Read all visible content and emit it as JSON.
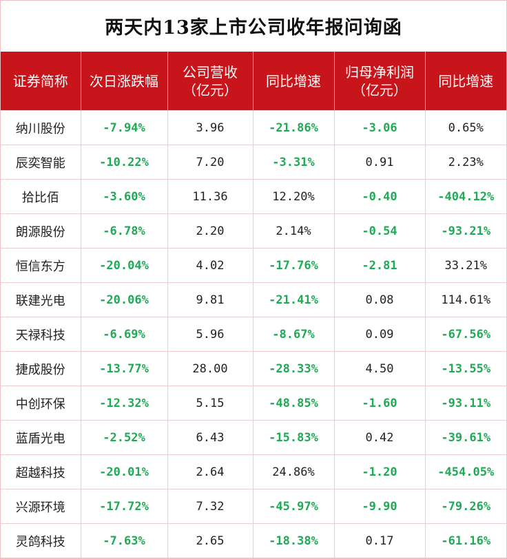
{
  "title": "两天内13家上市公司收年报问询函",
  "colors": {
    "header_bg": "#c8141b",
    "negative_text": "#1faa56",
    "grid": "#f1cccc"
  },
  "chart_data": {
    "type": "table",
    "title": "两天内13家上市公司收年报问询函",
    "columns": [
      "证券简称",
      "次日涨跌幅",
      "公司营收\n（亿元）",
      "同比增速",
      "归母净利润\n（亿元）",
      "同比增速"
    ],
    "rows": [
      [
        "纳川股份",
        "-7.94%",
        "3.96",
        "-21.86%",
        "-3.06",
        "0.65%"
      ],
      [
        "辰奕智能",
        "-10.22%",
        "7.20",
        "-3.31%",
        "0.91",
        "2.23%"
      ],
      [
        "拾比佰",
        "-3.60%",
        "11.36",
        "12.20%",
        "-0.40",
        "-404.12%"
      ],
      [
        "朗源股份",
        "-6.78%",
        "2.20",
        "2.14%",
        "-0.54",
        "-93.21%"
      ],
      [
        "恒信东方",
        "-20.04%",
        "4.02",
        "-17.76%",
        "-2.81",
        "33.21%"
      ],
      [
        "联建光电",
        "-20.06%",
        "9.81",
        "-21.41%",
        "0.08",
        "114.61%"
      ],
      [
        "天禄科技",
        "-6.69%",
        "5.96",
        "-8.67%",
        "0.09",
        "-67.56%"
      ],
      [
        "捷成股份",
        "-13.77%",
        "28.00",
        "-28.33%",
        "4.50",
        "-13.55%"
      ],
      [
        "中创环保",
        "-12.32%",
        "5.15",
        "-48.85%",
        "-1.60",
        "-93.11%"
      ],
      [
        "蓝盾光电",
        "-2.52%",
        "6.43",
        "-15.83%",
        "0.42",
        "-39.61%"
      ],
      [
        "超越科技",
        "-20.01%",
        "2.64",
        "24.86%",
        "-1.20",
        "-454.05%"
      ],
      [
        "兴源环境",
        "-17.72%",
        "7.32",
        "-45.97%",
        "-9.90",
        "-79.26%"
      ],
      [
        "灵鸽科技",
        "-7.63%",
        "2.65",
        "-18.38%",
        "0.17",
        "-61.16%"
      ]
    ]
  }
}
